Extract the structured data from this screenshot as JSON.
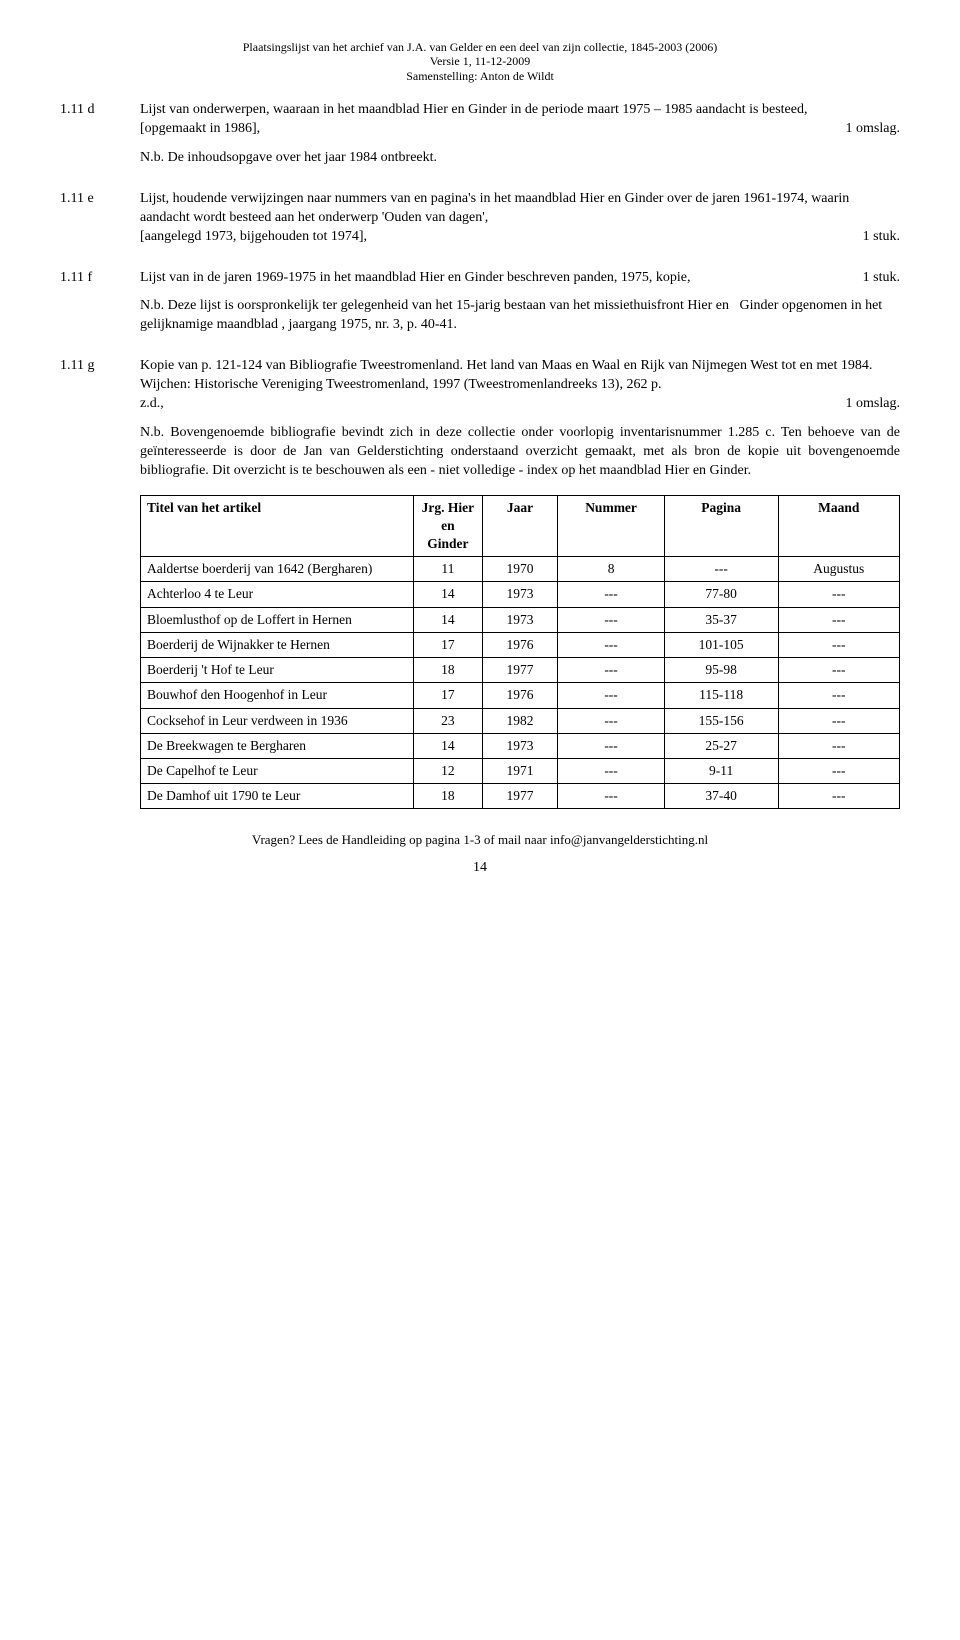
{
  "header": {
    "line1": "Plaatsingslijst van het archief van J.A. van Gelder en een deel van zijn collectie, 1845-2003 (2006)",
    "line2": "Versie 1, 11-12-2009",
    "line3": "Samenstelling: Anton de Wildt"
  },
  "entries": {
    "d": {
      "label": "1.11 d",
      "text1": "Lijst van onderwerpen, waaraan in het maandblad Hier en Ginder in de periode maart 1975 – 1985 aandacht is besteed,",
      "text2_left": "[opgemaakt in 1986],",
      "text2_right": "1 omslag.",
      "nb": "N.b. De inhoudsopgave over het jaar 1984 ontbreekt."
    },
    "e": {
      "label": "1.11 e",
      "text1": "Lijst, houdende verwijzingen naar nummers van en pagina's in het maandblad Hier en Ginder over de  jaren 1961-1974, waarin aandacht wordt besteed aan het onderwerp 'Ouden van dagen',",
      "text2_left": "[aangelegd 1973, bijgehouden tot 1974],",
      "text2_right": "1 stuk."
    },
    "f": {
      "label": "1.11 f",
      "text1_left": "Lijst van in de jaren 1969-1975 in het maandblad Hier en Ginder beschreven panden, 1975, kopie,",
      "text1_right": "1 stuk.",
      "nb": "N.b. Deze lijst is oorspronkelijk ter gelegenheid van het 15-jarig bestaan van het missiethuisfront Hier en   Ginder opgenomen in het gelijknamige maandblad , jaargang 1975, nr. 3, p. 40-41."
    },
    "g": {
      "label": "1.11 g",
      "text1": "Kopie van p. 121-124 van Bibliografie Tweestromenland. Het land van Maas en Waal en Rijk van Nijmegen West tot en met 1984. Wijchen: Historische Vereniging Tweestromenland, 1997 (Tweestromenlandreeks 13), 262 p.",
      "text2_left": "z.d.,",
      "text2_right": "1 omslag.",
      "nb": "N.b. Bovengenoemde bibliografie bevindt zich in deze collectie onder voorlopig inventarisnummer 1.285 c. Ten behoeve van de geïnteresseerde is door de Jan van Gelderstichting onderstaand overzicht gemaakt, met als bron de kopie uit bovengenoemde bibliografie. Dit overzicht is te beschouwen als een - niet volledige - index op het maandblad Hier en Ginder."
    }
  },
  "table": {
    "columns": [
      "Titel van het artikel",
      "Jrg. Hier en Ginder",
      "Jaar",
      "Nummer",
      "Pagina",
      "Maand"
    ],
    "rows": [
      [
        "Aaldertse boerderij van 1642 (Bergharen)",
        "11",
        "1970",
        "8",
        "---",
        "Augustus"
      ],
      [
        "Achterloo 4 te Leur",
        "14",
        "1973",
        "---",
        "77-80",
        "---"
      ],
      [
        "Bloemlusthof op de Loffert in Hernen",
        "14",
        "1973",
        "---",
        "35-37",
        "---"
      ],
      [
        "Boerderij de Wijnakker te Hernen",
        "17",
        "1976",
        "---",
        "101-105",
        "---"
      ],
      [
        "Boerderij 't Hof te Leur",
        "18",
        "1977",
        "---",
        "95-98",
        "---"
      ],
      [
        "Bouwhof den Hoogenhof in Leur",
        "17",
        "1976",
        "---",
        "115-118",
        "---"
      ],
      [
        "Cocksehof in Leur verdween in 1936",
        "23",
        "1982",
        "---",
        "155-156",
        "---"
      ],
      [
        "De Breekwagen te Bergharen",
        "14",
        "1973",
        "---",
        "25-27",
        "---"
      ],
      [
        "De Capelhof te Leur",
        "12",
        "1971",
        "---",
        "9-11",
        "---"
      ],
      [
        "De Damhof uit 1790 te Leur",
        "18",
        "1977",
        "---",
        "37-40",
        "---"
      ]
    ]
  },
  "footer": {
    "text": "Vragen? Lees de Handleiding op pagina 1-3 of mail naar info@janvangelderstichting.nl",
    "page_number": "14"
  }
}
